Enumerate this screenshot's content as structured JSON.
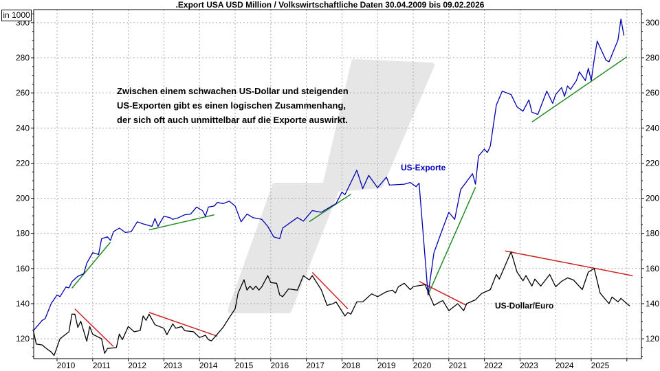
{
  "chart_data": {
    "type": "line",
    "title": ".Export USA USD Million / Volkswirtschaftliche Daten 30.04.2009 bis 09.02.2026",
    "unit_label": "in 1000",
    "ylim": [
      108.7,
      307.4
    ],
    "yticks": [
      120,
      140,
      160,
      180,
      200,
      220,
      240,
      260,
      280,
      300
    ],
    "xticks": [
      "2010",
      "2011",
      "2012",
      "2013",
      "2014",
      "2015",
      "2016",
      "2017",
      "2018",
      "2019",
      "2020",
      "2021",
      "2022",
      "2023",
      "2024",
      "2025"
    ],
    "grid": true,
    "axes": "left-and-right",
    "annotation": [
      "Zwischen einem schwachen US-Dollar und steigenden",
      "US-Exporten gibt es einen logischen Zusammenhang,",
      "der sich oft auch unmittelbar auf die Exporte auswirkt."
    ],
    "series": [
      {
        "name": "US-Exporte",
        "color": "#0000b0",
        "points": [
          [
            "2009-05",
            124.6
          ],
          [
            "2009-08",
            130.5
          ],
          [
            "2009-09",
            131.5
          ],
          [
            "2009-11",
            140
          ],
          [
            "2010-01",
            145
          ],
          [
            "2010-02",
            144
          ],
          [
            "2010-04",
            149.5
          ],
          [
            "2010-05",
            149
          ],
          [
            "2010-06",
            152.5
          ],
          [
            "2010-08",
            155.6
          ],
          [
            "2010-10",
            157
          ],
          [
            "2010-11",
            163
          ],
          [
            "2011-01",
            169
          ],
          [
            "2011-03",
            168
          ],
          [
            "2011-04",
            177
          ],
          [
            "2011-06",
            178
          ],
          [
            "2011-07",
            176
          ],
          [
            "2011-08",
            181
          ],
          [
            "2011-10",
            183
          ],
          [
            "2011-12",
            180.5
          ],
          [
            "2012-02",
            181
          ],
          [
            "2012-04",
            186.6
          ],
          [
            "2012-06",
            185.4
          ],
          [
            "2012-09",
            184
          ],
          [
            "2012-10",
            188.5
          ],
          [
            "2012-11",
            184
          ],
          [
            "2013-01",
            189.8
          ],
          [
            "2013-03",
            189
          ],
          [
            "2013-04",
            188
          ],
          [
            "2013-06",
            189
          ],
          [
            "2013-08",
            190.6
          ],
          [
            "2013-10",
            191
          ],
          [
            "2013-12",
            195
          ],
          [
            "2014-02",
            193
          ],
          [
            "2014-03",
            189.8
          ],
          [
            "2014-04",
            195
          ],
          [
            "2014-06",
            195.6
          ],
          [
            "2014-07",
            197.6
          ],
          [
            "2014-09",
            197
          ],
          [
            "2014-11",
            198.3
          ],
          [
            "2015-01",
            195.6
          ],
          [
            "2015-03",
            186.6
          ],
          [
            "2015-05",
            191
          ],
          [
            "2015-07",
            189
          ],
          [
            "2015-10",
            188
          ],
          [
            "2015-12",
            184
          ],
          [
            "2016-02",
            178
          ],
          [
            "2016-04",
            177
          ],
          [
            "2016-05",
            183
          ],
          [
            "2016-10",
            189
          ],
          [
            "2016-12",
            187
          ],
          [
            "2017-03",
            193
          ],
          [
            "2017-06",
            192
          ],
          [
            "2017-11",
            197
          ],
          [
            "2018-01",
            203.5
          ],
          [
            "2018-02",
            202
          ],
          [
            "2018-06",
            216
          ],
          [
            "2018-08",
            205.5
          ],
          [
            "2018-10",
            213
          ],
          [
            "2019-01",
            206
          ],
          [
            "2019-04",
            212
          ],
          [
            "2019-05",
            207.5
          ],
          [
            "2019-10",
            208
          ],
          [
            "2019-12",
            209
          ],
          [
            "2020-02",
            206.6
          ],
          [
            "2020-03",
            208.6
          ],
          [
            "2020-06",
            145
          ],
          [
            "2020-08",
            169
          ],
          [
            "2020-11",
            183
          ],
          [
            "2021-01",
            192
          ],
          [
            "2021-03",
            188
          ],
          [
            "2021-05",
            205
          ],
          [
            "2021-09",
            214
          ],
          [
            "2021-10",
            208
          ],
          [
            "2021-11",
            224
          ],
          [
            "2022-01",
            228
          ],
          [
            "2022-02",
            226
          ],
          [
            "2022-03",
            229.7
          ],
          [
            "2022-05",
            253
          ],
          [
            "2022-07",
            261
          ],
          [
            "2022-10",
            259
          ],
          [
            "2022-12",
            252
          ],
          [
            "2023-02",
            249.6
          ],
          [
            "2023-04",
            256
          ],
          [
            "2023-05",
            249
          ],
          [
            "2023-07",
            247.7
          ],
          [
            "2023-10",
            261
          ],
          [
            "2023-12",
            254
          ],
          [
            "2024-01",
            259
          ],
          [
            "2024-03",
            263
          ],
          [
            "2024-04",
            258
          ],
          [
            "2024-05",
            264
          ],
          [
            "2024-06",
            262
          ],
          [
            "2024-08",
            267
          ],
          [
            "2024-09",
            272
          ],
          [
            "2024-11",
            267
          ],
          [
            "2024-12",
            274
          ],
          [
            "2025-01",
            267
          ],
          [
            "2025-02",
            279
          ],
          [
            "2025-03",
            289.5
          ],
          [
            "2025-06",
            278.5
          ],
          [
            "2025-07",
            277.7
          ],
          [
            "2025-10",
            290
          ],
          [
            "2025-11",
            302
          ],
          [
            "2025-12",
            292.6
          ]
        ]
      },
      {
        "name": "US-Dollar/Euro",
        "color": "#000000",
        "points": [
          [
            "2009-05",
            124.6
          ],
          [
            "2009-06",
            117
          ],
          [
            "2009-08",
            116.5
          ],
          [
            "2009-09",
            115
          ],
          [
            "2009-11",
            112.5
          ],
          [
            "2009-12",
            110.5
          ],
          [
            "2010-02",
            120
          ],
          [
            "2010-05",
            124
          ],
          [
            "2010-06",
            134
          ],
          [
            "2010-07",
            134
          ],
          [
            "2010-08",
            126.5
          ],
          [
            "2010-09",
            130
          ],
          [
            "2010-11",
            118.6
          ],
          [
            "2010-12",
            127
          ],
          [
            "2011-01",
            122.6
          ],
          [
            "2011-04",
            120
          ],
          [
            "2011-05",
            111.7
          ],
          [
            "2011-06",
            114.5
          ],
          [
            "2011-09",
            115
          ],
          [
            "2011-10",
            122.7
          ],
          [
            "2011-11",
            119.5
          ],
          [
            "2012-01",
            127
          ],
          [
            "2012-03",
            124
          ],
          [
            "2012-05",
            124.7
          ],
          [
            "2012-06",
            133
          ],
          [
            "2012-07",
            130.5
          ],
          [
            "2012-08",
            134
          ],
          [
            "2012-10",
            128
          ],
          [
            "2013-01",
            126
          ],
          [
            "2013-02",
            122.3
          ],
          [
            "2013-04",
            128.5
          ],
          [
            "2013-05",
            126
          ],
          [
            "2013-07",
            127
          ],
          [
            "2013-08",
            124.6
          ],
          [
            "2013-11",
            124
          ],
          [
            "2014-01",
            120.7
          ],
          [
            "2014-03",
            122
          ],
          [
            "2014-04",
            119.5
          ],
          [
            "2014-05",
            118.8
          ],
          [
            "2014-06",
            120.7
          ],
          [
            "2014-09",
            126.6
          ],
          [
            "2014-11",
            132
          ],
          [
            "2015-01",
            137
          ],
          [
            "2015-02",
            146
          ],
          [
            "2015-04",
            153.6
          ],
          [
            "2015-05",
            147.7
          ],
          [
            "2015-06",
            150
          ],
          [
            "2015-07",
            148
          ],
          [
            "2015-08",
            150
          ],
          [
            "2015-09",
            147.7
          ],
          [
            "2015-10",
            149.6
          ],
          [
            "2015-12",
            156
          ],
          [
            "2016-01",
            152
          ],
          [
            "2016-03",
            151.6
          ],
          [
            "2016-04",
            145
          ],
          [
            "2016-05",
            144
          ],
          [
            "2016-07",
            148.4
          ],
          [
            "2016-10",
            147.7
          ],
          [
            "2016-12",
            156
          ],
          [
            "2017-02",
            153.5
          ],
          [
            "2017-03",
            156
          ],
          [
            "2017-06",
            148
          ],
          [
            "2017-08",
            139
          ],
          [
            "2017-10",
            140
          ],
          [
            "2017-11",
            141
          ],
          [
            "2018-02",
            133
          ],
          [
            "2018-03",
            135
          ],
          [
            "2018-04",
            134
          ],
          [
            "2018-06",
            141
          ],
          [
            "2018-08",
            141
          ],
          [
            "2018-11",
            145.6
          ],
          [
            "2019-01",
            144
          ],
          [
            "2019-04",
            146.8
          ],
          [
            "2019-06",
            147.7
          ],
          [
            "2019-07",
            146
          ],
          [
            "2019-08",
            149.6
          ],
          [
            "2019-10",
            151.6
          ],
          [
            "2019-12",
            148
          ],
          [
            "2020-01",
            149.6
          ],
          [
            "2020-02",
            150
          ],
          [
            "2020-05",
            150.8
          ],
          [
            "2020-06",
            146.8
          ],
          [
            "2020-08",
            139
          ],
          [
            "2020-10",
            141
          ],
          [
            "2020-11",
            141.7
          ],
          [
            "2021-01",
            136
          ],
          [
            "2021-04",
            140
          ],
          [
            "2021-06",
            136
          ],
          [
            "2021-07",
            140
          ],
          [
            "2021-10",
            142.2
          ],
          [
            "2021-12",
            145.7
          ],
          [
            "2022-03",
            148
          ],
          [
            "2022-05",
            156.6
          ],
          [
            "2022-06",
            154
          ],
          [
            "2022-10",
            169.5
          ],
          [
            "2022-12",
            158
          ],
          [
            "2023-02",
            153
          ],
          [
            "2023-03",
            156
          ],
          [
            "2023-05",
            150
          ],
          [
            "2023-06",
            154
          ],
          [
            "2023-08",
            150
          ],
          [
            "2023-11",
            156.6
          ],
          [
            "2024-01",
            149.6
          ],
          [
            "2024-03",
            152.7
          ],
          [
            "2024-05",
            154.7
          ],
          [
            "2024-07",
            153.5
          ],
          [
            "2024-10",
            148
          ],
          [
            "2024-12",
            158
          ],
          [
            "2025-02",
            160
          ],
          [
            "2025-04",
            146
          ],
          [
            "2025-07",
            140
          ],
          [
            "2025-08",
            143.8
          ],
          [
            "2025-10",
            141
          ],
          [
            "2025-11",
            143
          ],
          [
            "2026-01",
            140
          ],
          [
            "2026-02",
            138.7
          ]
        ]
      }
    ],
    "trendlines": [
      {
        "color": "#228b22",
        "from": [
          "2010-06",
          148.8
        ],
        "to": [
          "2011-07",
          175
        ]
      },
      {
        "color": "#228b22",
        "from": [
          "2012-08",
          182
        ],
        "to": [
          "2014-06",
          190.6
        ]
      },
      {
        "color": "#228b22",
        "from": [
          "2017-02",
          186.7
        ],
        "to": [
          "2018-04",
          202.3
        ]
      },
      {
        "color": "#228b22",
        "from": [
          "2020-06",
          145
        ],
        "to": [
          "2021-10",
          206.3
        ]
      },
      {
        "color": "#228b22",
        "from": [
          "2023-05",
          243.4
        ],
        "to": [
          "2026-01",
          280.5
        ]
      },
      {
        "color": "#cc2222",
        "from": [
          "2010-07",
          137
        ],
        "to": [
          "2011-08",
          115.6
        ]
      },
      {
        "color": "#cc2222",
        "from": [
          "2012-08",
          135
        ],
        "to": [
          "2014-07",
          121.5
        ]
      },
      {
        "color": "#cc2222",
        "from": [
          "2017-03",
          157.8
        ],
        "to": [
          "2018-03",
          137
        ]
      },
      {
        "color": "#cc2222",
        "from": [
          "2020-03",
          152.7
        ],
        "to": [
          "2021-07",
          139
        ]
      },
      {
        "color": "#cc2222",
        "from": [
          "2022-08",
          170
        ],
        "to": [
          "2026-03",
          155.9
        ]
      }
    ]
  }
}
